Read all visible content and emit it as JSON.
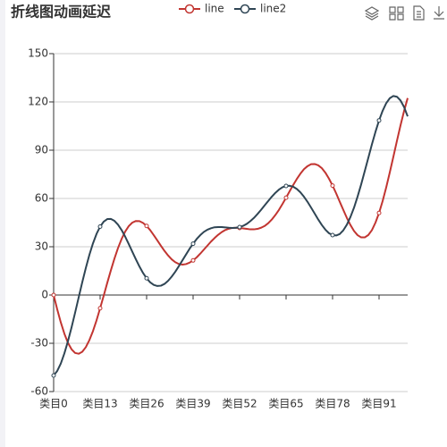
{
  "chart_data": {
    "type": "line",
    "title": "折线图动画延迟",
    "categories": [
      "类目0",
      null,
      null,
      null,
      null,
      null,
      null,
      null,
      null,
      null,
      null,
      null,
      null,
      "类目13",
      null,
      null,
      null,
      null,
      null,
      null,
      null,
      null,
      null,
      null,
      null,
      null,
      "类目26",
      null,
      null,
      null,
      null,
      null,
      null,
      null,
      null,
      null,
      null,
      null,
      null,
      "类目39",
      null,
      null,
      null,
      null,
      null,
      null,
      null,
      null,
      null,
      null,
      null,
      null,
      "类目52",
      null,
      null,
      null,
      null,
      null,
      null,
      null,
      null,
      null,
      null,
      null,
      null,
      "类目65",
      null,
      null,
      null,
      null,
      null,
      null,
      null,
      null,
      null,
      null,
      null,
      null,
      "类目78",
      null,
      null,
      null,
      null,
      null,
      null,
      null,
      null,
      null,
      null,
      null,
      null,
      "类目91",
      null,
      null,
      null,
      null,
      null,
      null,
      null,
      null
    ],
    "series": [
      {
        "name": "line",
        "color": "#c23531",
        "values": [
          0,
          -8.9,
          -17.0,
          -24.0,
          -29.7,
          -33.7,
          -36.0,
          -36.5,
          -35.3,
          -32.4,
          -28.0,
          -22.4,
          -15.7,
          -8.2,
          -0.4,
          7.6,
          15.3,
          22.6,
          29.2,
          34.8,
          39.4,
          42.8,
          45.0,
          46.0,
          45.9,
          44.8,
          42.9,
          40.3,
          37.2,
          33.9,
          30.6,
          27.4,
          24.6,
          22.2,
          20.4,
          19.3,
          18.9,
          19.2,
          20.1,
          21.5,
          23.4,
          25.7,
          28.2,
          30.7,
          33.2,
          35.4,
          37.4,
          39.1,
          40.4,
          41.2,
          41.7,
          41.8,
          41.7,
          41.4,
          41.1,
          40.8,
          40.8,
          41.1,
          41.8,
          42.9,
          44.6,
          46.9,
          49.7,
          52.9,
          56.6,
          60.5,
          64.5,
          68.4,
          72.1,
          75.4,
          78.2,
          80.1,
          81.3,
          81.4,
          80.6,
          78.8,
          76.0,
          72.3,
          68.0,
          63.2,
          58.0,
          52.9,
          47.9,
          43.5,
          39.8,
          37.2,
          35.8,
          35.8,
          37.3,
          40.3,
          45.0,
          51.0,
          58.4,
          66.9,
          76.2,
          85.9,
          95.8,
          105.4,
          114.4,
          122.4
        ]
      },
      {
        "name": "line2",
        "color": "#2f4554",
        "values": [
          -50,
          -47.2,
          -42.6,
          -36.3,
          -28.7,
          -20.2,
          -11.0,
          -1.5,
          7.9,
          16.8,
          25.0,
          32.1,
          38.0,
          42.5,
          45.6,
          47.2,
          47.3,
          46.1,
          43.7,
          40.4,
          36.3,
          31.7,
          26.9,
          22.2,
          17.7,
          13.7,
          10.4,
          7.9,
          6.3,
          5.6,
          5.8,
          6.9,
          8.8,
          11.4,
          14.4,
          17.9,
          21.5,
          25.1,
          28.7,
          31.9,
          34.8,
          37.2,
          39.2,
          40.6,
          41.5,
          42.1,
          42.2,
          42.2,
          42.0,
          41.8,
          41.7,
          41.8,
          42.2,
          43.0,
          44.2,
          45.9,
          47.9,
          50.3,
          52.9,
          55.7,
          58.4,
          61.1,
          63.5,
          65.5,
          67.0,
          67.8,
          67.9,
          67.3,
          65.9,
          63.8,
          61.1,
          57.9,
          54.3,
          50.6,
          46.9,
          43.5,
          40.6,
          38.4,
          37.2,
          37.0,
          37.9,
          40.2,
          43.7,
          48.5,
          54.3,
          61.2,
          68.8,
          77.0,
          85.3,
          93.6,
          101.4,
          108.5,
          114.5,
          119.2,
          122.3,
          123.7,
          123.2,
          120.9,
          116.8,
          111.0
        ]
      }
    ],
    "ylim": [
      -60,
      150
    ],
    "yticks": [
      -60,
      -30,
      0,
      30,
      60,
      90,
      120,
      150
    ],
    "grid": true
  }
}
